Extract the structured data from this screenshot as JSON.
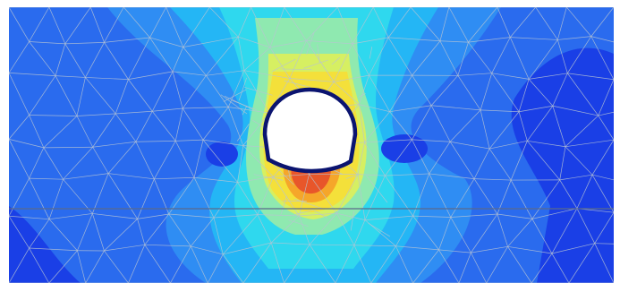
{
  "figure": {
    "kind": "finite-element-contour-plot",
    "colors": {
      "background": "#ffffff",
      "mesh_line": "#b9c4d2",
      "opening_outline": "#0b1470",
      "opening_fill": "#ffffff",
      "contour_levels": [
        "#1a3fe6",
        "#2a6bee",
        "#2f8df3",
        "#24b6f5",
        "#2fd8ee",
        "#8fe9b0",
        "#d6ef62",
        "#f4e03a",
        "#f5a62a",
        "#e8562a"
      ]
    }
  }
}
